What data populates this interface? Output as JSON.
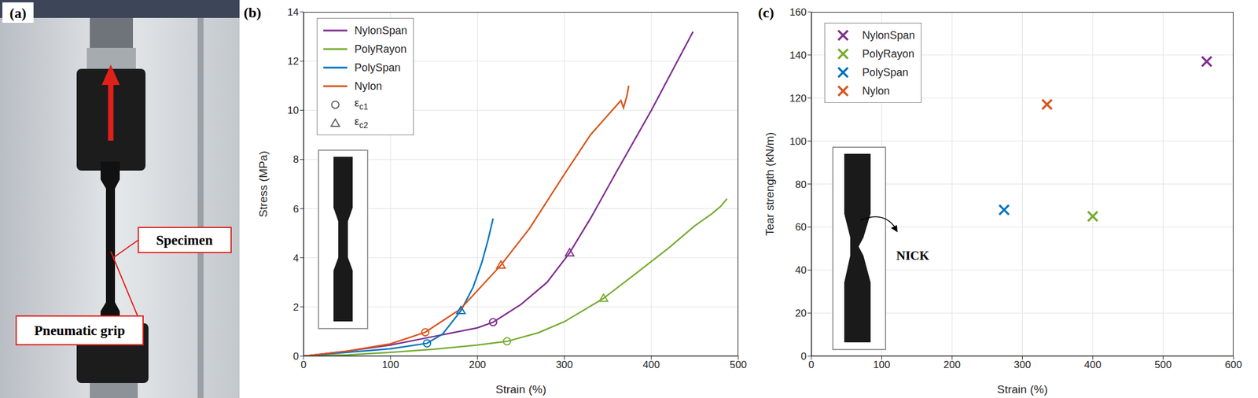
{
  "photo": {
    "panel": "(a)",
    "labels": [
      "Specimen",
      "Pneumatic grip"
    ]
  },
  "chart_data": [
    {
      "type": "line",
      "panel": "(b)",
      "x_label": "Strain (%)",
      "y_label": "Stress (MPa)",
      "xlim": [
        0,
        500
      ],
      "xticks": [
        0,
        100,
        200,
        300,
        400,
        500
      ],
      "ylim": [
        0,
        14
      ],
      "yticks": [
        0,
        2,
        4,
        6,
        8,
        10,
        12,
        14
      ],
      "grid": true,
      "legend": "upper left",
      "markers": [
        {
          "name": "εc1",
          "marker": "circle"
        },
        {
          "name": "εc2",
          "marker": "triangle"
        }
      ],
      "series": [
        {
          "name": "NylonSpan",
          "color": "#7e2f8e",
          "x": [
            0,
            50,
            100,
            150,
            200,
            218,
            250,
            280,
            306,
            330,
            360,
            400,
            430,
            448
          ],
          "values": [
            0,
            0.2,
            0.45,
            0.8,
            1.15,
            1.38,
            2.1,
            3.0,
            4.2,
            5.6,
            7.5,
            10.0,
            12.0,
            13.2
          ],
          "marks": [
            [
              218,
              1.38
            ],
            [
              306,
              4.2
            ]
          ]
        },
        {
          "name": "PolyRayon",
          "color": "#77ac30",
          "x": [
            0,
            50,
            100,
            150,
            200,
            234,
            270,
            300,
            345,
            380,
            420,
            450,
            470,
            480,
            487
          ],
          "values": [
            0,
            0.05,
            0.15,
            0.28,
            0.45,
            0.6,
            0.95,
            1.4,
            2.35,
            3.3,
            4.4,
            5.3,
            5.8,
            6.1,
            6.4
          ],
          "marks": [
            [
              234,
              0.6
            ],
            [
              345,
              2.35
            ]
          ]
        },
        {
          "name": "PolySpan",
          "color": "#0072bd",
          "x": [
            0,
            50,
            100,
            142,
            160,
            181,
            195,
            205,
            212,
            218
          ],
          "values": [
            0,
            0.15,
            0.3,
            0.52,
            0.9,
            1.85,
            2.8,
            3.8,
            4.7,
            5.6
          ],
          "marks": [
            [
              142,
              0.52
            ],
            [
              181,
              1.85
            ]
          ]
        },
        {
          "name": "Nylon",
          "color": "#d95319",
          "x": [
            0,
            50,
            100,
            140,
            180,
            227,
            260,
            300,
            330,
            350,
            360,
            365,
            368,
            372,
            374
          ],
          "values": [
            0,
            0.2,
            0.5,
            0.97,
            1.9,
            3.7,
            5.2,
            7.4,
            9.0,
            9.8,
            10.2,
            10.4,
            10.1,
            10.6,
            11.0
          ],
          "marks": [
            [
              140,
              0.97
            ],
            [
              227,
              3.7
            ]
          ]
        }
      ]
    },
    {
      "type": "scatter",
      "panel": "(c)",
      "x_label": "Strain (%)",
      "y_label": "Tear strength (kN/m)",
      "xlim": [
        0,
        600
      ],
      "xticks": [
        0,
        100,
        200,
        300,
        400,
        500,
        600
      ],
      "ylim": [
        0,
        160
      ],
      "yticks": [
        0,
        20,
        40,
        60,
        80,
        100,
        120,
        140,
        160
      ],
      "grid": true,
      "legend": "upper left",
      "marker": "x",
      "annotations": [
        "NICK"
      ],
      "series": [
        {
          "name": "NylonSpan",
          "color": "#7e2f8e",
          "x": [
            562
          ],
          "values": [
            137
          ]
        },
        {
          "name": "PolyRayon",
          "color": "#77ac30",
          "x": [
            400
          ],
          "values": [
            65
          ]
        },
        {
          "name": "PolySpan",
          "color": "#0072bd",
          "x": [
            274
          ],
          "values": [
            68
          ]
        },
        {
          "name": "Nylon",
          "color": "#d95319",
          "x": [
            335
          ],
          "values": [
            117
          ]
        }
      ]
    }
  ]
}
